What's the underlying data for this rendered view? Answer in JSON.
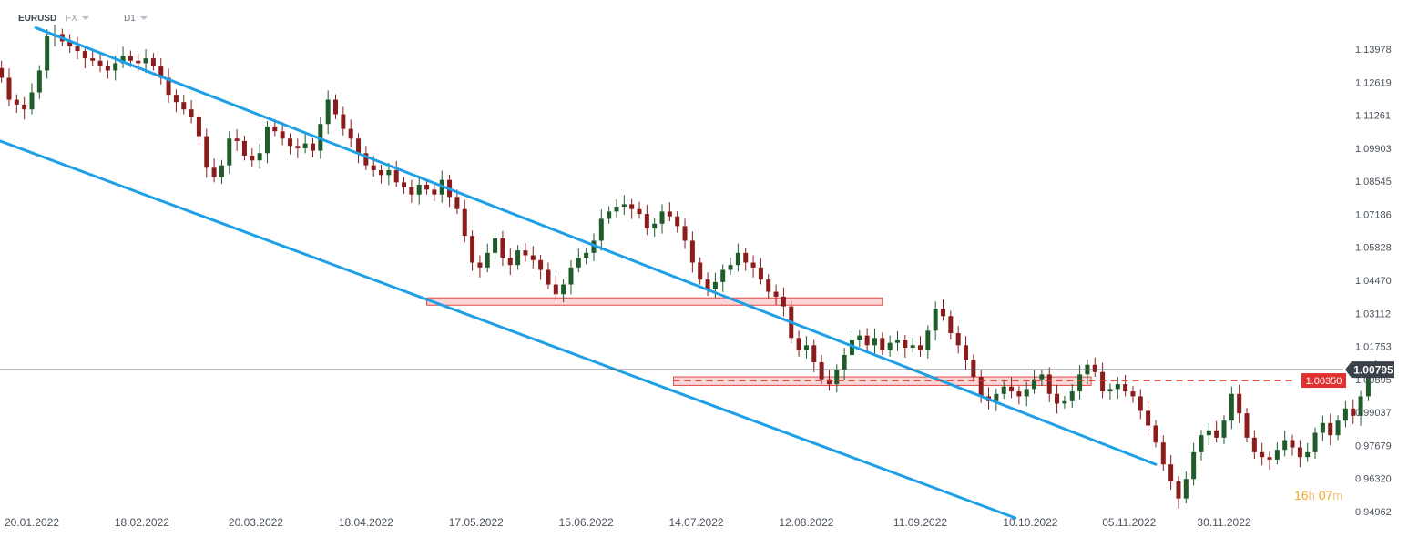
{
  "header": {
    "symbol": "EURUSD",
    "market": "FX",
    "timeframe": "D1"
  },
  "countdown": {
    "hours": "16",
    "hours_unit": "h",
    "minutes": "07",
    "minutes_unit": "m"
  },
  "colors": {
    "up": "#1f5c2a",
    "down": "#8b1c1c",
    "channel": "#1fa0e6",
    "zone_fill": "#fbd6d6",
    "zone_stroke": "#e04848",
    "level": "#e03030",
    "price_tag": "#3a4149"
  },
  "chart_data": {
    "type": "candlestick",
    "symbol": "EURUSD",
    "timeframe": "D1",
    "y_axis": {
      "range": [
        0.9446,
        1.1555
      ],
      "ticks": [
        1.13978,
        1.12619,
        1.11261,
        1.09903,
        1.08545,
        1.07186,
        1.05828,
        1.0447,
        1.03112,
        1.01753,
        1.00395,
        0.99037,
        0.97679,
        0.9632,
        0.94962
      ]
    },
    "x_axis": {
      "ticks": [
        "20.01.2022",
        "18.02.2022",
        "20.03.2022",
        "18.04.2022",
        "17.05.2022",
        "15.06.2022",
        "14.07.2022",
        "12.08.2022",
        "11.09.2022",
        "10.10.2022",
        "05.11.2022",
        "30.11.2022"
      ]
    },
    "current_price": {
      "value": 1.00795,
      "label": "1.00795"
    },
    "level": {
      "value": 1.0035,
      "label": "1.00350"
    },
    "zones": [
      {
        "from_date": "2022-05-04",
        "to_date": "2022-09-01",
        "low": 1.0345,
        "high": 1.0375
      },
      {
        "from_date": "2022-07-08",
        "to_date": "2022-10-26",
        "low": 1.0015,
        "high": 1.005
      }
    ],
    "trendlines": [
      {
        "name": "upper channel",
        "points": [
          [
            "2022-01-21",
            1.1486
          ],
          [
            "2022-11-12",
            0.969
          ]
        ]
      },
      {
        "name": "lower channel",
        "points": [
          [
            "2022-01-03",
            1.107
          ],
          [
            "2022-10-06",
            0.947
          ]
        ]
      }
    ],
    "closes": [
      [
        "2022-01-04",
        1.13
      ],
      [
        "2022-01-06",
        1.131
      ],
      [
        "2022-01-08",
        1.129
      ],
      [
        "2022-01-10",
        1.132
      ],
      [
        "2022-01-12",
        1.128
      ],
      [
        "2022-01-14",
        1.119
      ],
      [
        "2022-01-16",
        1.117
      ],
      [
        "2022-01-18",
        1.115
      ],
      [
        "2022-01-20",
        1.122
      ],
      [
        "2022-01-22",
        1.131
      ],
      [
        "2022-01-24",
        1.145
      ],
      [
        "2022-01-26",
        1.146
      ],
      [
        "2022-01-28",
        1.143
      ],
      [
        "2022-01-30",
        1.141
      ],
      [
        "2022-02-01",
        1.139
      ],
      [
        "2022-02-03",
        1.136
      ],
      [
        "2022-02-05",
        1.135
      ],
      [
        "2022-02-07",
        1.133
      ],
      [
        "2022-02-09",
        1.131
      ],
      [
        "2022-02-11",
        1.134
      ],
      [
        "2022-02-13",
        1.137
      ],
      [
        "2022-02-15",
        1.135
      ],
      [
        "2022-02-17",
        1.134
      ],
      [
        "2022-02-19",
        1.136
      ],
      [
        "2022-02-21",
        1.133
      ],
      [
        "2022-02-23",
        1.128
      ],
      [
        "2022-02-25",
        1.121
      ],
      [
        "2022-02-27",
        1.118
      ],
      [
        "2022-03-01",
        1.115
      ],
      [
        "2022-03-03",
        1.112
      ],
      [
        "2022-03-05",
        1.104
      ],
      [
        "2022-03-07",
        1.091
      ],
      [
        "2022-03-09",
        1.087
      ],
      [
        "2022-03-11",
        1.092
      ],
      [
        "2022-03-13",
        1.103
      ],
      [
        "2022-03-15",
        1.102
      ],
      [
        "2022-03-17",
        1.096
      ],
      [
        "2022-03-19",
        1.094
      ],
      [
        "2022-03-21",
        1.097
      ],
      [
        "2022-03-23",
        1.108
      ],
      [
        "2022-03-25",
        1.106
      ],
      [
        "2022-03-27",
        1.103
      ],
      [
        "2022-03-29",
        1.1
      ],
      [
        "2022-03-31",
        1.099
      ],
      [
        "2022-04-02",
        1.101
      ],
      [
        "2022-04-04",
        1.098
      ],
      [
        "2022-04-06",
        1.109
      ],
      [
        "2022-04-08",
        1.119
      ],
      [
        "2022-04-10",
        1.113
      ],
      [
        "2022-04-12",
        1.107
      ],
      [
        "2022-04-14",
        1.103
      ],
      [
        "2022-04-16",
        1.097
      ],
      [
        "2022-04-18",
        1.092
      ],
      [
        "2022-04-20",
        1.09
      ],
      [
        "2022-04-22",
        1.088
      ],
      [
        "2022-04-24",
        1.09
      ],
      [
        "2022-04-26",
        1.085
      ],
      [
        "2022-04-28",
        1.083
      ],
      [
        "2022-04-30",
        1.08
      ],
      [
        "2022-05-02",
        1.084
      ],
      [
        "2022-05-04",
        1.082
      ],
      [
        "2022-05-06",
        1.08
      ],
      [
        "2022-05-08",
        1.086
      ],
      [
        "2022-05-10",
        1.079
      ],
      [
        "2022-05-12",
        1.074
      ],
      [
        "2022-05-14",
        1.063
      ],
      [
        "2022-05-16",
        1.052
      ],
      [
        "2022-05-18",
        1.05
      ],
      [
        "2022-05-20",
        1.056
      ],
      [
        "2022-05-22",
        1.062
      ],
      [
        "2022-05-24",
        1.054
      ],
      [
        "2022-05-26",
        1.051
      ],
      [
        "2022-05-28",
        1.057
      ],
      [
        "2022-05-30",
        1.055
      ],
      [
        "2022-06-01",
        1.053
      ],
      [
        "2022-06-03",
        1.049
      ],
      [
        "2022-06-05",
        1.043
      ],
      [
        "2022-06-07",
        1.039
      ],
      [
        "2022-06-09",
        1.043
      ],
      [
        "2022-06-11",
        1.05
      ],
      [
        "2022-06-13",
        1.054
      ],
      [
        "2022-06-15",
        1.056
      ],
      [
        "2022-06-17",
        1.061
      ],
      [
        "2022-06-19",
        1.07
      ],
      [
        "2022-06-21",
        1.073
      ],
      [
        "2022-06-23",
        1.075
      ],
      [
        "2022-06-25",
        1.076
      ],
      [
        "2022-06-27",
        1.074
      ],
      [
        "2022-06-29",
        1.072
      ],
      [
        "2022-07-01",
        1.066
      ],
      [
        "2022-07-03",
        1.068
      ],
      [
        "2022-07-05",
        1.073
      ],
      [
        "2022-07-07",
        1.071
      ],
      [
        "2022-07-09",
        1.067
      ],
      [
        "2022-07-11",
        1.061
      ],
      [
        "2022-07-13",
        1.052
      ],
      [
        "2022-07-15",
        1.045
      ],
      [
        "2022-07-17",
        1.041
      ],
      [
        "2022-07-19",
        1.044
      ],
      [
        "2022-07-21",
        1.049
      ],
      [
        "2022-07-23",
        1.051
      ],
      [
        "2022-07-25",
        1.056
      ],
      [
        "2022-07-27",
        1.052
      ],
      [
        "2022-07-29",
        1.05
      ],
      [
        "2022-07-31",
        1.045
      ],
      [
        "2022-08-02",
        1.04
      ],
      [
        "2022-08-04",
        1.038
      ],
      [
        "2022-08-06",
        1.034
      ],
      [
        "2022-08-08",
        1.021
      ],
      [
        "2022-08-10",
        1.016
      ],
      [
        "2022-08-12",
        1.018
      ],
      [
        "2022-08-14",
        1.011
      ],
      [
        "2022-08-16",
        1.004
      ],
      [
        "2022-08-18",
        1.002
      ],
      [
        "2022-08-20",
        1.008
      ],
      [
        "2022-08-22",
        1.014
      ],
      [
        "2022-08-24",
        1.02
      ],
      [
        "2022-08-26",
        1.022
      ],
      [
        "2022-08-28",
        1.018
      ],
      [
        "2022-08-30",
        1.021
      ],
      [
        "2022-09-01",
        1.016
      ],
      [
        "2022-09-03",
        1.019
      ],
      [
        "2022-09-05",
        1.02
      ],
      [
        "2022-09-07",
        1.017
      ],
      [
        "2022-09-09",
        1.018
      ],
      [
        "2022-09-11",
        1.016
      ],
      [
        "2022-09-13",
        1.024
      ],
      [
        "2022-09-15",
        1.033
      ],
      [
        "2022-09-17",
        1.03
      ],
      [
        "2022-09-19",
        1.023
      ],
      [
        "2022-09-21",
        1.018
      ],
      [
        "2022-09-23",
        1.012
      ],
      [
        "2022-09-25",
        1.005
      ],
      [
        "2022-09-27",
        0.997
      ],
      [
        "2022-09-29",
        0.995
      ],
      [
        "2022-10-01",
        0.998
      ],
      [
        "2022-10-03",
        1.001
      ],
      [
        "2022-10-05",
        0.999
      ],
      [
        "2022-10-07",
        0.997
      ],
      [
        "2022-10-09",
        1.0
      ],
      [
        "2022-10-11",
        1.004
      ],
      [
        "2022-10-13",
        1.006
      ],
      [
        "2022-10-15",
        0.998
      ],
      [
        "2022-10-17",
        0.994
      ],
      [
        "2022-10-19",
        0.995
      ],
      [
        "2022-10-21",
        0.999
      ],
      [
        "2022-10-23",
        1.006
      ],
      [
        "2022-10-25",
        1.01
      ],
      [
        "2022-10-27",
        1.007
      ],
      [
        "2022-10-29",
        0.999
      ],
      [
        "2022-10-31",
        1.0
      ],
      [
        "2022-11-02",
        1.002
      ],
      [
        "2022-11-04",
        0.999
      ],
      [
        "2022-11-06",
        0.997
      ],
      [
        "2022-11-08",
        0.991
      ],
      [
        "2022-11-10",
        0.985
      ],
      [
        "2022-11-12",
        0.978
      ],
      [
        "2022-11-14",
        0.969
      ],
      [
        "2022-11-16",
        0.962
      ],
      [
        "2022-11-18",
        0.955
      ],
      [
        "2022-11-20",
        0.963
      ],
      [
        "2022-11-22",
        0.974
      ],
      [
        "2022-11-24",
        0.981
      ],
      [
        "2022-11-26",
        0.983
      ],
      [
        "2022-11-28",
        0.98
      ],
      [
        "2022-11-30",
        0.987
      ],
      [
        "2022-12-02",
        0.998
      ],
      [
        "2022-12-04",
        0.99
      ],
      [
        "2022-12-06",
        0.98
      ],
      [
        "2022-12-08",
        0.974
      ],
      [
        "2022-12-10",
        0.972
      ],
      [
        "2022-12-12",
        0.971
      ],
      [
        "2022-12-14",
        0.975
      ],
      [
        "2022-12-16",
        0.979
      ],
      [
        "2022-12-18",
        0.976
      ],
      [
        "2022-12-20",
        0.972
      ],
      [
        "2022-12-22",
        0.974
      ],
      [
        "2022-12-24",
        0.982
      ],
      [
        "2022-12-26",
        0.986
      ],
      [
        "2022-12-28",
        0.981
      ],
      [
        "2022-12-30",
        0.987
      ],
      [
        "2023-01-01",
        0.992
      ],
      [
        "2023-01-03",
        0.989
      ],
      [
        "2023-01-05",
        0.997
      ],
      [
        "2023-01-07",
        1.006
      ],
      [
        "2023-01-09",
        1.008
      ]
    ]
  }
}
